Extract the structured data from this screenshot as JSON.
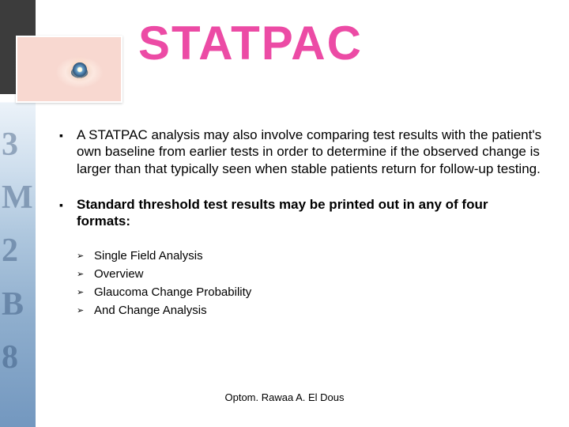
{
  "title": {
    "text": "STATPAC",
    "color": "#ec4ba5",
    "fontsize": 60
  },
  "bullets": [
    {
      "text": "A STATPAC analysis may also involve comparing test results with the patient's own baseline from earlier tests in order to determine if the observed change is larger than that typically seen when stable patients return for follow-up testing.",
      "bold": false
    },
    {
      "text": "Standard threshold test results may be printed out in any of four formats:",
      "bold": true
    }
  ],
  "sublist": [
    {
      "text": "Single Field Analysis"
    },
    {
      "text": "Overview"
    },
    {
      "text": "Glaucoma Change Probability"
    },
    {
      "text": "And Change Analysis"
    }
  ],
  "footer": "Optom. Rawaa A. El Dous",
  "colors": {
    "accent": "#ec4ba5",
    "text": "#000000",
    "background": "#ffffff"
  }
}
